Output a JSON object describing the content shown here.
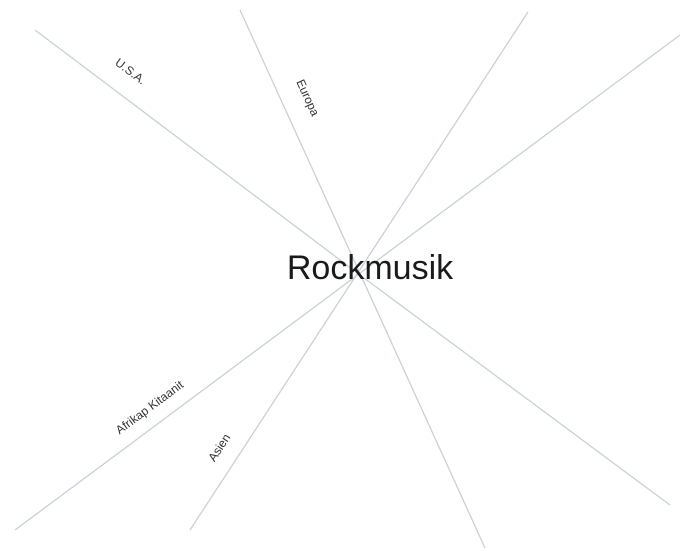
{
  "center": {
    "label": "Rockmusik"
  },
  "branches": [
    {
      "label": "U.S.A."
    },
    {
      "label": "Europa"
    },
    {
      "label": "Afrikap Kitaanit"
    },
    {
      "label": "Asien"
    }
  ]
}
